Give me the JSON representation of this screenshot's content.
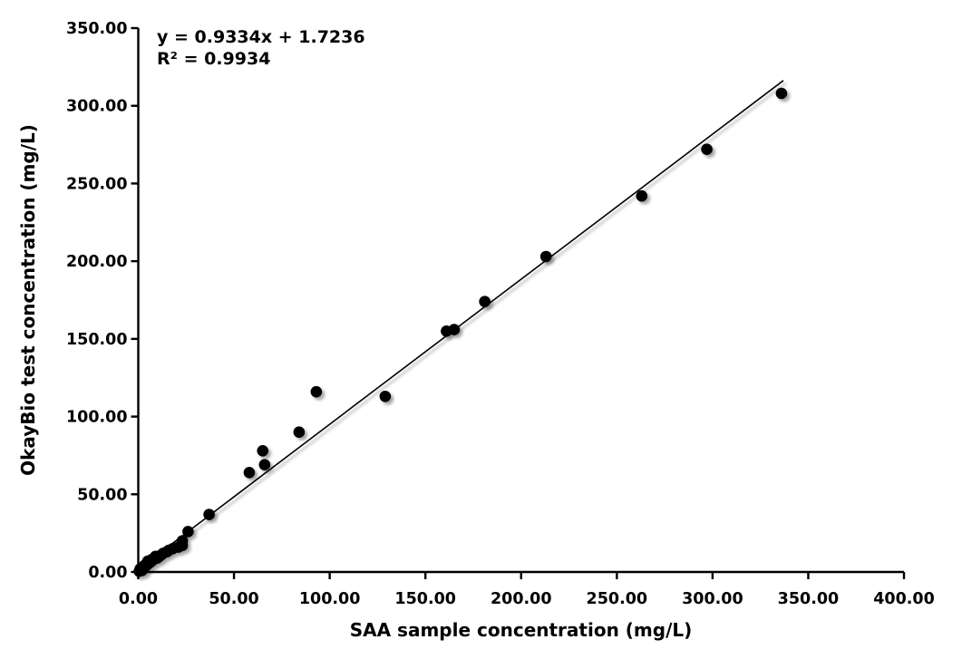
{
  "chart_data": {
    "type": "scatter",
    "title": "",
    "xlabel": "SAA sample concentration (mg/L)",
    "ylabel": "OkayBio test concentration (mg/L)",
    "xlim": [
      0,
      400
    ],
    "ylim": [
      0,
      350
    ],
    "xtick_step": 50,
    "ytick_step": 50,
    "tick_decimals": 2,
    "grid": false,
    "legend": "none",
    "point_color": "#000000",
    "line_color": "#000000",
    "axis_color": "#000000",
    "annotations": {
      "equation": "y = 0.9334x + 1.7236",
      "r_squared": "R² = 0.9934"
    },
    "trendline": {
      "slope": 0.9334,
      "intercept": 1.7236,
      "x_start": 0,
      "x_end": 337
    },
    "points": [
      [
        0.5,
        0.5
      ],
      [
        1,
        1
      ],
      [
        1,
        2
      ],
      [
        2,
        1
      ],
      [
        2,
        2
      ],
      [
        3,
        3
      ],
      [
        3,
        4
      ],
      [
        4,
        4
      ],
      [
        4,
        5
      ],
      [
        5,
        5
      ],
      [
        5,
        7
      ],
      [
        6,
        6
      ],
      [
        7,
        7
      ],
      [
        7,
        8
      ],
      [
        8,
        8
      ],
      [
        9,
        9
      ],
      [
        9,
        10
      ],
      [
        10,
        9
      ],
      [
        11,
        10
      ],
      [
        12,
        11
      ],
      [
        13,
        12
      ],
      [
        15,
        13
      ],
      [
        16,
        14
      ],
      [
        18,
        15
      ],
      [
        21,
        16
      ],
      [
        23,
        17
      ],
      [
        23,
        20
      ],
      [
        26,
        26
      ],
      [
        37,
        37
      ],
      [
        58,
        64
      ],
      [
        65,
        78
      ],
      [
        66,
        69
      ],
      [
        84,
        90
      ],
      [
        93,
        116
      ],
      [
        129,
        113
      ],
      [
        161,
        155
      ],
      [
        165,
        156
      ],
      [
        181,
        174
      ],
      [
        213,
        203
      ],
      [
        263,
        242
      ],
      [
        297,
        272
      ],
      [
        336,
        308
      ]
    ]
  }
}
